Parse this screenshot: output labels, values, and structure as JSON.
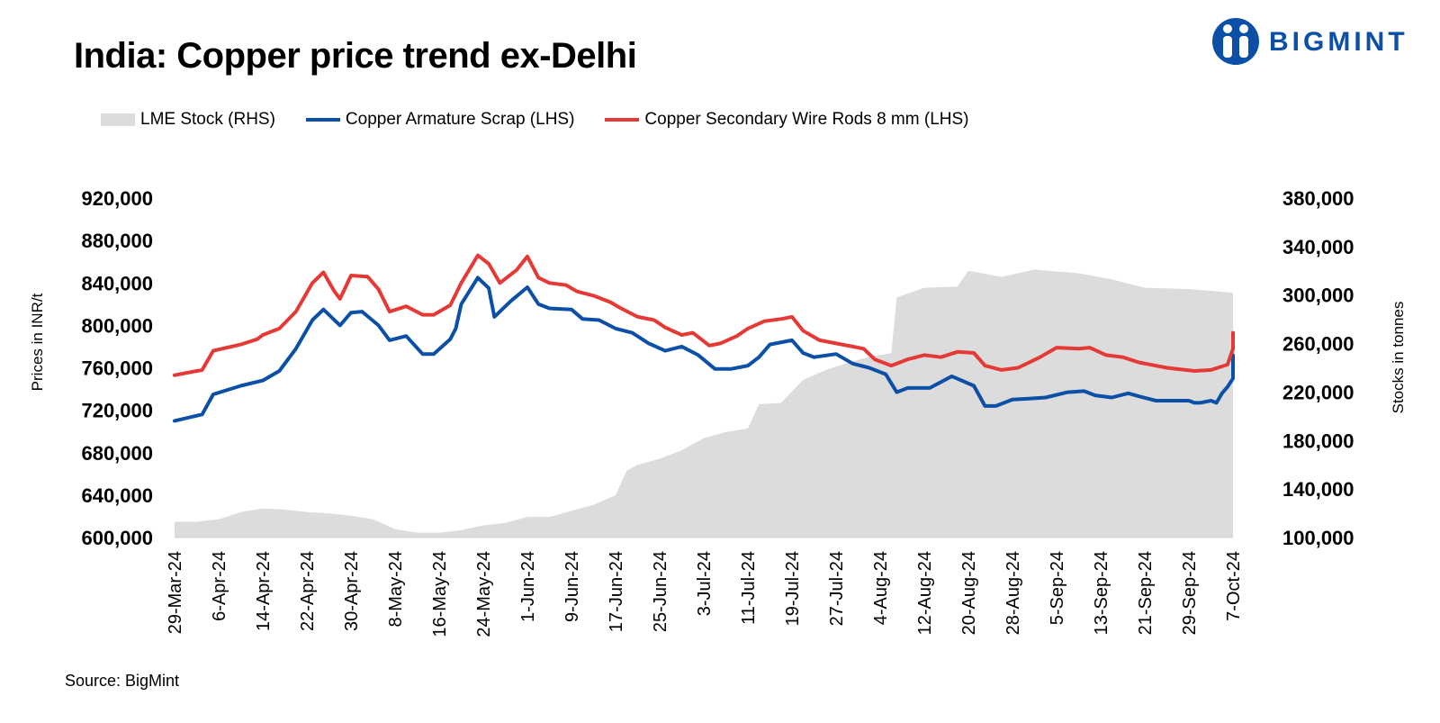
{
  "title": "India: Copper price trend ex-Delhi",
  "logo": {
    "text": "BIGMINT",
    "color": "#0b4fa6"
  },
  "source": "Source: BigMint",
  "chart_data": {
    "type": "line",
    "title": "India: Copper price trend ex-Delhi",
    "ylabel_left": "Prices in INR/t",
    "ylabel_right": "Stocks in tonnes",
    "ylim_left": [
      600000,
      920000
    ],
    "ylim_right": [
      100000,
      380000
    ],
    "yticks_left": [
      "600,000",
      "640,000",
      "680,000",
      "720,000",
      "760,000",
      "800,000",
      "840,000",
      "880,000",
      "920,000"
    ],
    "yticks_right": [
      "100,000",
      "140,000",
      "180,000",
      "220,000",
      "260,000",
      "300,000",
      "340,000",
      "380,000"
    ],
    "x_tick_labels": [
      "29-Mar-24",
      "6-Apr-24",
      "14-Apr-24",
      "22-Apr-24",
      "30-Apr-24",
      "8-May-24",
      "16-May-24",
      "24-May-24",
      "1-Jun-24",
      "9-Jun-24",
      "17-Jun-24",
      "25-Jun-24",
      "3-Jul-24",
      "11-Jul-24",
      "19-Jul-24",
      "27-Jul-24",
      "4-Aug-24",
      "12-Aug-24",
      "20-Aug-24",
      "28-Aug-24",
      "5-Sep-24",
      "13-Sep-24",
      "21-Sep-24",
      "29-Sep-24",
      "7-Oct-24"
    ],
    "grid": false,
    "legend_position": "top",
    "series": [
      {
        "name": "LME Stock (RHS)",
        "type": "area",
        "axis": "right",
        "color": "#dcdcdc",
        "points": [
          [
            "29-Mar-24",
            113000
          ],
          [
            "2-Apr-24",
            113000
          ],
          [
            "6-Apr-24",
            115000
          ],
          [
            "10-Apr-24",
            121000
          ],
          [
            "14-Apr-24",
            124000
          ],
          [
            "18-Apr-24",
            123000
          ],
          [
            "22-Apr-24",
            121000
          ],
          [
            "26-Apr-24",
            120000
          ],
          [
            "30-Apr-24",
            118000
          ],
          [
            "4-May-24",
            115000
          ],
          [
            "8-May-24",
            107000
          ],
          [
            "12-May-24",
            104000
          ],
          [
            "16-May-24",
            104000
          ],
          [
            "20-May-24",
            106000
          ],
          [
            "24-May-24",
            110000
          ],
          [
            "28-May-24",
            112000
          ],
          [
            "1-Jun-24",
            117000
          ],
          [
            "5-Jun-24",
            117000
          ],
          [
            "9-Jun-24",
            122000
          ],
          [
            "13-Jun-24",
            127000
          ],
          [
            "17-Jun-24",
            135000
          ],
          [
            "19-Jun-24",
            155000
          ],
          [
            "21-Jun-24",
            160000
          ],
          [
            "25-Jun-24",
            165000
          ],
          [
            "29-Jun-24",
            172000
          ],
          [
            "3-Jul-24",
            182000
          ],
          [
            "7-Jul-24",
            187000
          ],
          [
            "11-Jul-24",
            190000
          ],
          [
            "13-Jul-24",
            210000
          ],
          [
            "17-Jul-24",
            211000
          ],
          [
            "21-Jul-24",
            230000
          ],
          [
            "25-Jul-24",
            238000
          ],
          [
            "29-Jul-24",
            244000
          ],
          [
            "2-Aug-24",
            249000
          ],
          [
            "6-Aug-24",
            252000
          ],
          [
            "7-Aug-24",
            298000
          ],
          [
            "12-Aug-24",
            306000
          ],
          [
            "18-Aug-24",
            307000
          ],
          [
            "20-Aug-24",
            320000
          ],
          [
            "26-Aug-24",
            315000
          ],
          [
            "1-Sep-24",
            321000
          ],
          [
            "9-Sep-24",
            318000
          ],
          [
            "15-Sep-24",
            313000
          ],
          [
            "21-Sep-24",
            306000
          ],
          [
            "29-Sep-24",
            305000
          ],
          [
            "7-Oct-24",
            302000
          ]
        ]
      },
      {
        "name": "Copper Armature Scrap (LHS)",
        "type": "line",
        "axis": "left",
        "color": "#0b4fa6",
        "points": [
          [
            "29-Mar-24",
            710000
          ],
          [
            "3-Apr-24",
            716000
          ],
          [
            "5-Apr-24",
            735000
          ],
          [
            "10-Apr-24",
            743000
          ],
          [
            "14-Apr-24",
            748000
          ],
          [
            "17-Apr-24",
            757000
          ],
          [
            "20-Apr-24",
            778000
          ],
          [
            "23-Apr-24",
            805000
          ],
          [
            "25-Apr-24",
            815000
          ],
          [
            "28-Apr-24",
            800000
          ],
          [
            "30-Apr-24",
            812000
          ],
          [
            "2-May-24",
            813000
          ],
          [
            "5-May-24",
            800000
          ],
          [
            "7-May-24",
            786000
          ],
          [
            "10-May-24",
            790000
          ],
          [
            "13-May-24",
            773000
          ],
          [
            "15-May-24",
            773000
          ],
          [
            "18-May-24",
            787000
          ],
          [
            "19-May-24",
            797000
          ],
          [
            "20-May-24",
            820000
          ],
          [
            "23-May-24",
            845000
          ],
          [
            "25-May-24",
            835000
          ],
          [
            "26-May-24",
            808000
          ],
          [
            "29-May-24",
            823000
          ],
          [
            "1-Jun-24",
            836000
          ],
          [
            "3-Jun-24",
            820000
          ],
          [
            "5-Jun-24",
            816000
          ],
          [
            "9-Jun-24",
            815000
          ],
          [
            "11-Jun-24",
            806000
          ],
          [
            "14-Jun-24",
            805000
          ],
          [
            "17-Jun-24",
            797000
          ],
          [
            "20-Jun-24",
            793000
          ],
          [
            "23-Jun-24",
            783000
          ],
          [
            "26-Jun-24",
            776000
          ],
          [
            "29-Jun-24",
            780000
          ],
          [
            "2-Jul-24",
            772000
          ],
          [
            "5-Jul-24",
            759000
          ],
          [
            "8-Jul-24",
            759000
          ],
          [
            "11-Jul-24",
            762000
          ],
          [
            "13-Jul-24",
            770000
          ],
          [
            "15-Jul-24",
            782000
          ],
          [
            "19-Jul-24",
            786000
          ],
          [
            "21-Jul-24",
            774000
          ],
          [
            "23-Jul-24",
            770000
          ],
          [
            "27-Jul-24",
            773000
          ],
          [
            "30-Jul-24",
            764000
          ],
          [
            "2-Aug-24",
            760000
          ],
          [
            "5-Aug-24",
            754000
          ],
          [
            "7-Aug-24",
            737000
          ],
          [
            "9-Aug-24",
            741000
          ],
          [
            "13-Aug-24",
            741000
          ],
          [
            "17-Aug-24",
            752000
          ],
          [
            "21-Aug-24",
            743000
          ],
          [
            "23-Aug-24",
            724000
          ],
          [
            "25-Aug-24",
            724000
          ],
          [
            "28-Aug-24",
            730000
          ],
          [
            "31-Aug-24",
            731000
          ],
          [
            "3-Sep-24",
            732000
          ],
          [
            "7-Sep-24",
            737000
          ],
          [
            "10-Sep-24",
            738000
          ],
          [
            "12-Sep-24",
            734000
          ],
          [
            "15-Sep-24",
            732000
          ],
          [
            "18-Sep-24",
            736000
          ],
          [
            "20-Sep-24",
            733000
          ],
          [
            "23-Sep-24",
            729000
          ],
          [
            "26-Sep-24",
            729000
          ],
          [
            "29-Sep-24",
            729000
          ],
          [
            "30-Sep-24",
            727000
          ],
          [
            "1-Oct-24",
            727000
          ],
          [
            "3-Oct-24",
            729000
          ],
          [
            "4-Oct-24",
            727000
          ],
          [
            "5-Oct-24",
            736000
          ],
          [
            "6-Oct-24",
            742000
          ],
          [
            "7-Oct-24",
            750000
          ],
          [
            "9-Oct-24",
            766000
          ],
          [
            "12-Oct-24",
            770000
          ],
          [
            "15-Oct-24",
            772000
          ],
          [
            "19-Oct-24",
            771000
          ],
          [
            "22-Oct-24",
            767000
          ]
        ]
      },
      {
        "name": "Copper Secondary Wire Rods 8 mm (LHS)",
        "type": "line",
        "axis": "left",
        "color": "#e53935",
        "points": [
          [
            "29-Mar-24",
            753000
          ],
          [
            "3-Apr-24",
            758000
          ],
          [
            "5-Apr-24",
            776000
          ],
          [
            "10-Apr-24",
            782000
          ],
          [
            "13-Apr-24",
            787000
          ],
          [
            "14-Apr-24",
            791000
          ],
          [
            "17-Apr-24",
            797000
          ],
          [
            "20-Apr-24",
            813000
          ],
          [
            "23-Apr-24",
            840000
          ],
          [
            "25-Apr-24",
            850000
          ],
          [
            "27-Apr-24",
            832000
          ],
          [
            "28-Apr-24",
            825000
          ],
          [
            "30-Apr-24",
            847000
          ],
          [
            "3-May-24",
            846000
          ],
          [
            "5-May-24",
            834000
          ],
          [
            "7-May-24",
            813000
          ],
          [
            "10-May-24",
            818000
          ],
          [
            "13-May-24",
            810000
          ],
          [
            "15-May-24",
            810000
          ],
          [
            "18-May-24",
            819000
          ],
          [
            "20-May-24",
            840000
          ],
          [
            "23-May-24",
            866000
          ],
          [
            "25-May-24",
            858000
          ],
          [
            "27-May-24",
            840000
          ],
          [
            "30-May-24",
            852000
          ],
          [
            "1-Jun-24",
            865000
          ],
          [
            "3-Jun-24",
            845000
          ],
          [
            "5-Jun-24",
            840000
          ],
          [
            "8-Jun-24",
            838000
          ],
          [
            "10-Jun-24",
            832000
          ],
          [
            "13-Jun-24",
            828000
          ],
          [
            "16-Jun-24",
            822000
          ],
          [
            "18-Jun-24",
            816000
          ],
          [
            "21-Jun-24",
            808000
          ],
          [
            "24-Jun-24",
            805000
          ],
          [
            "26-Jun-24",
            798000
          ],
          [
            "29-Jun-24",
            791000
          ],
          [
            "1-Jul-24",
            793000
          ],
          [
            "4-Jul-24",
            781000
          ],
          [
            "6-Jul-24",
            783000
          ],
          [
            "9-Jul-24",
            790000
          ],
          [
            "11-Jul-24",
            797000
          ],
          [
            "14-Jul-24",
            804000
          ],
          [
            "17-Jul-24",
            806000
          ],
          [
            "19-Jul-24",
            808000
          ],
          [
            "21-Jul-24",
            795000
          ],
          [
            "24-Jul-24",
            786000
          ],
          [
            "27-Jul-24",
            783000
          ],
          [
            "30-Jul-24",
            780000
          ],
          [
            "1-Aug-24",
            778000
          ],
          [
            "3-Aug-24",
            768000
          ],
          [
            "6-Aug-24",
            762000
          ],
          [
            "9-Aug-24",
            768000
          ],
          [
            "12-Aug-24",
            772000
          ],
          [
            "15-Aug-24",
            770000
          ],
          [
            "18-Aug-24",
            775000
          ],
          [
            "21-Aug-24",
            774000
          ],
          [
            "23-Aug-24",
            762000
          ],
          [
            "26-Aug-24",
            758000
          ],
          [
            "29-Aug-24",
            760000
          ],
          [
            "2-Sep-24",
            770000
          ],
          [
            "5-Sep-24",
            779000
          ],
          [
            "9-Sep-24",
            778000
          ],
          [
            "11-Sep-24",
            779000
          ],
          [
            "14-Sep-24",
            772000
          ],
          [
            "17-Sep-24",
            770000
          ],
          [
            "20-Sep-24",
            765000
          ],
          [
            "25-Sep-24",
            760000
          ],
          [
            "30-Sep-24",
            757000
          ],
          [
            "3-Oct-24",
            758000
          ],
          [
            "6-Oct-24",
            763000
          ],
          [
            "9-Oct-24",
            778000
          ],
          [
            "12-Oct-24",
            790000
          ],
          [
            "14-Oct-24",
            793000
          ],
          [
            "18-Oct-24",
            791000
          ],
          [
            "22-Oct-24",
            787000
          ]
        ]
      }
    ]
  }
}
